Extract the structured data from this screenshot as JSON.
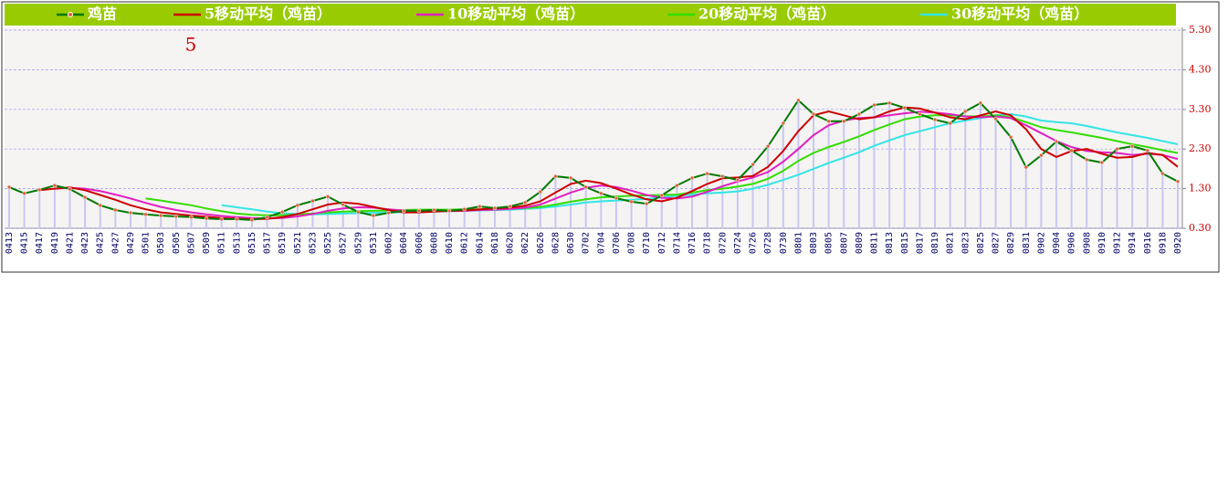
{
  "chart_data": {
    "type": "line",
    "annotation": "5",
    "categories": [
      "0413",
      "0415",
      "0417",
      "0419",
      "0421",
      "0423",
      "0425",
      "0427",
      "0429",
      "0501",
      "0503",
      "0505",
      "0507",
      "0509",
      "0511",
      "0513",
      "0515",
      "0517",
      "0519",
      "0521",
      "0523",
      "0525",
      "0527",
      "0529",
      "0531",
      "0602",
      "0604",
      "0606",
      "0608",
      "0610",
      "0612",
      "0614",
      "0618",
      "0620",
      "0622",
      "0626",
      "0628",
      "0630",
      "0702",
      "0704",
      "0706",
      "0708",
      "0710",
      "0712",
      "0714",
      "0716",
      "0718",
      "0720",
      "0724",
      "0726",
      "0728",
      "0730",
      "0801",
      "0803",
      "0805",
      "0807",
      "0809",
      "0811",
      "0813",
      "0815",
      "0817",
      "0819",
      "0821",
      "0823",
      "0825",
      "0827",
      "0829",
      "0831",
      "0902",
      "0904",
      "0906",
      "0908",
      "0910",
      "0912",
      "0914",
      "0916",
      "0918",
      "0920"
    ],
    "series": [
      {
        "name": "鸡苗",
        "color": "#007a00",
        "values": [
          1.34,
          1.18,
          1.27,
          1.38,
          1.29,
          1.08,
          0.88,
          0.76,
          0.69,
          0.65,
          0.62,
          0.6,
          0.58,
          0.55,
          0.53,
          0.53,
          0.51,
          0.58,
          0.71,
          0.88,
          0.99,
          1.1,
          0.9,
          0.71,
          0.62,
          0.69,
          0.74,
          0.74,
          0.76,
          0.74,
          0.78,
          0.85,
          0.81,
          0.85,
          0.95,
          1.22,
          1.61,
          1.57,
          1.34,
          1.18,
          1.06,
          0.97,
          0.92,
          1.13,
          1.38,
          1.57,
          1.68,
          1.61,
          1.52,
          1.91,
          2.37,
          2.95,
          3.53,
          3.18,
          3.0,
          3.0,
          3.18,
          3.41,
          3.46,
          3.34,
          3.18,
          3.04,
          2.95,
          3.25,
          3.46,
          3.06,
          2.6,
          1.84,
          2.14,
          2.49,
          2.26,
          2.03,
          1.96,
          2.3,
          2.37,
          2.26,
          1.68,
          1.48
        ]
      },
      {
        "name": "5移动平均（鸡苗）",
        "color": "#cc0000",
        "values": [
          null,
          null,
          1.26,
          1.3,
          1.33,
          1.26,
          1.14,
          1.02,
          0.88,
          0.78,
          0.7,
          0.66,
          0.62,
          0.59,
          0.56,
          0.54,
          0.53,
          0.54,
          0.58,
          0.66,
          0.78,
          0.9,
          0.95,
          0.92,
          0.84,
          0.76,
          0.7,
          0.7,
          0.72,
          0.74,
          0.75,
          0.78,
          0.8,
          0.82,
          0.87,
          0.98,
          1.2,
          1.42,
          1.5,
          1.44,
          1.3,
          1.15,
          1.03,
          0.98,
          1.07,
          1.24,
          1.42,
          1.56,
          1.58,
          1.62,
          1.85,
          2.25,
          2.75,
          3.15,
          3.25,
          3.15,
          3.05,
          3.1,
          3.25,
          3.35,
          3.32,
          3.22,
          3.1,
          3.05,
          3.15,
          3.25,
          3.15,
          2.8,
          2.3,
          2.1,
          2.25,
          2.3,
          2.18,
          2.08,
          2.1,
          2.2,
          2.15,
          1.85
        ]
      },
      {
        "name": "10移动平均（鸡苗）",
        "color": "#e020c0",
        "values": [
          null,
          null,
          null,
          1.3,
          1.32,
          1.3,
          1.24,
          1.15,
          1.05,
          0.94,
          0.84,
          0.76,
          0.7,
          0.65,
          0.61,
          0.58,
          0.56,
          0.55,
          0.56,
          0.6,
          0.66,
          0.74,
          0.8,
          0.83,
          0.82,
          0.78,
          0.75,
          0.73,
          0.73,
          0.73,
          0.74,
          0.76,
          0.77,
          0.79,
          0.82,
          0.9,
          1.05,
          1.2,
          1.32,
          1.38,
          1.34,
          1.25,
          1.14,
          1.07,
          1.05,
          1.1,
          1.22,
          1.36,
          1.48,
          1.58,
          1.72,
          1.98,
          2.3,
          2.65,
          2.9,
          3.02,
          3.08,
          3.1,
          3.15,
          3.2,
          3.24,
          3.22,
          3.18,
          3.12,
          3.1,
          3.12,
          3.08,
          2.9,
          2.7,
          2.5,
          2.35,
          2.25,
          2.22,
          2.2,
          2.15,
          2.18,
          2.15,
          2.05
        ]
      },
      {
        "name": "20移动平均（鸡苗）",
        "color": "#33dd00",
        "values": [
          null,
          null,
          null,
          null,
          null,
          null,
          null,
          null,
          null,
          1.05,
          1.0,
          0.94,
          0.88,
          0.8,
          0.73,
          0.67,
          0.64,
          0.63,
          0.63,
          0.65,
          0.67,
          0.7,
          0.72,
          0.73,
          0.74,
          0.75,
          0.76,
          0.77,
          0.77,
          0.77,
          0.78,
          0.78,
          0.78,
          0.79,
          0.81,
          0.84,
          0.9,
          0.97,
          1.03,
          1.08,
          1.1,
          1.12,
          1.13,
          1.14,
          1.15,
          1.2,
          1.26,
          1.3,
          1.35,
          1.42,
          1.55,
          1.75,
          2.0,
          2.2,
          2.35,
          2.48,
          2.62,
          2.78,
          2.92,
          3.05,
          3.12,
          3.15,
          3.15,
          3.13,
          3.12,
          3.15,
          3.1,
          2.98,
          2.85,
          2.78,
          2.72,
          2.65,
          2.58,
          2.5,
          2.42,
          2.35,
          2.27,
          2.2
        ]
      },
      {
        "name": "30移动平均（鸡苗）",
        "color": "#33e5e5",
        "values": [
          null,
          null,
          null,
          null,
          null,
          null,
          null,
          null,
          null,
          null,
          null,
          null,
          null,
          null,
          0.88,
          0.83,
          0.78,
          0.72,
          0.68,
          0.66,
          0.65,
          0.66,
          0.67,
          0.68,
          0.69,
          0.7,
          0.71,
          0.72,
          0.72,
          0.73,
          0.74,
          0.75,
          0.76,
          0.77,
          0.79,
          0.81,
          0.85,
          0.9,
          0.95,
          0.98,
          1.0,
          1.02,
          1.04,
          1.08,
          1.12,
          1.15,
          1.18,
          1.2,
          1.23,
          1.3,
          1.4,
          1.52,
          1.65,
          1.8,
          1.95,
          2.08,
          2.22,
          2.38,
          2.52,
          2.65,
          2.75,
          2.85,
          2.95,
          3.02,
          3.08,
          3.15,
          3.18,
          3.12,
          3.02,
          2.98,
          2.95,
          2.88,
          2.8,
          2.72,
          2.65,
          2.58,
          2.5,
          2.42
        ]
      }
    ],
    "ylim": [
      0.3,
      5.3
    ],
    "yticks": [
      {
        "value": 0.3,
        "label": "0.30"
      },
      {
        "value": 1.3,
        "label": "1.30"
      },
      {
        "value": 2.3,
        "label": "2.30"
      },
      {
        "value": 3.3,
        "label": "3.30"
      },
      {
        "value": 4.3,
        "label": "4.30"
      },
      {
        "value": 5.3,
        "label": "5.30"
      }
    ],
    "grid": true,
    "bars_color": "#c8c8f0",
    "marker_color": "#e06040"
  }
}
